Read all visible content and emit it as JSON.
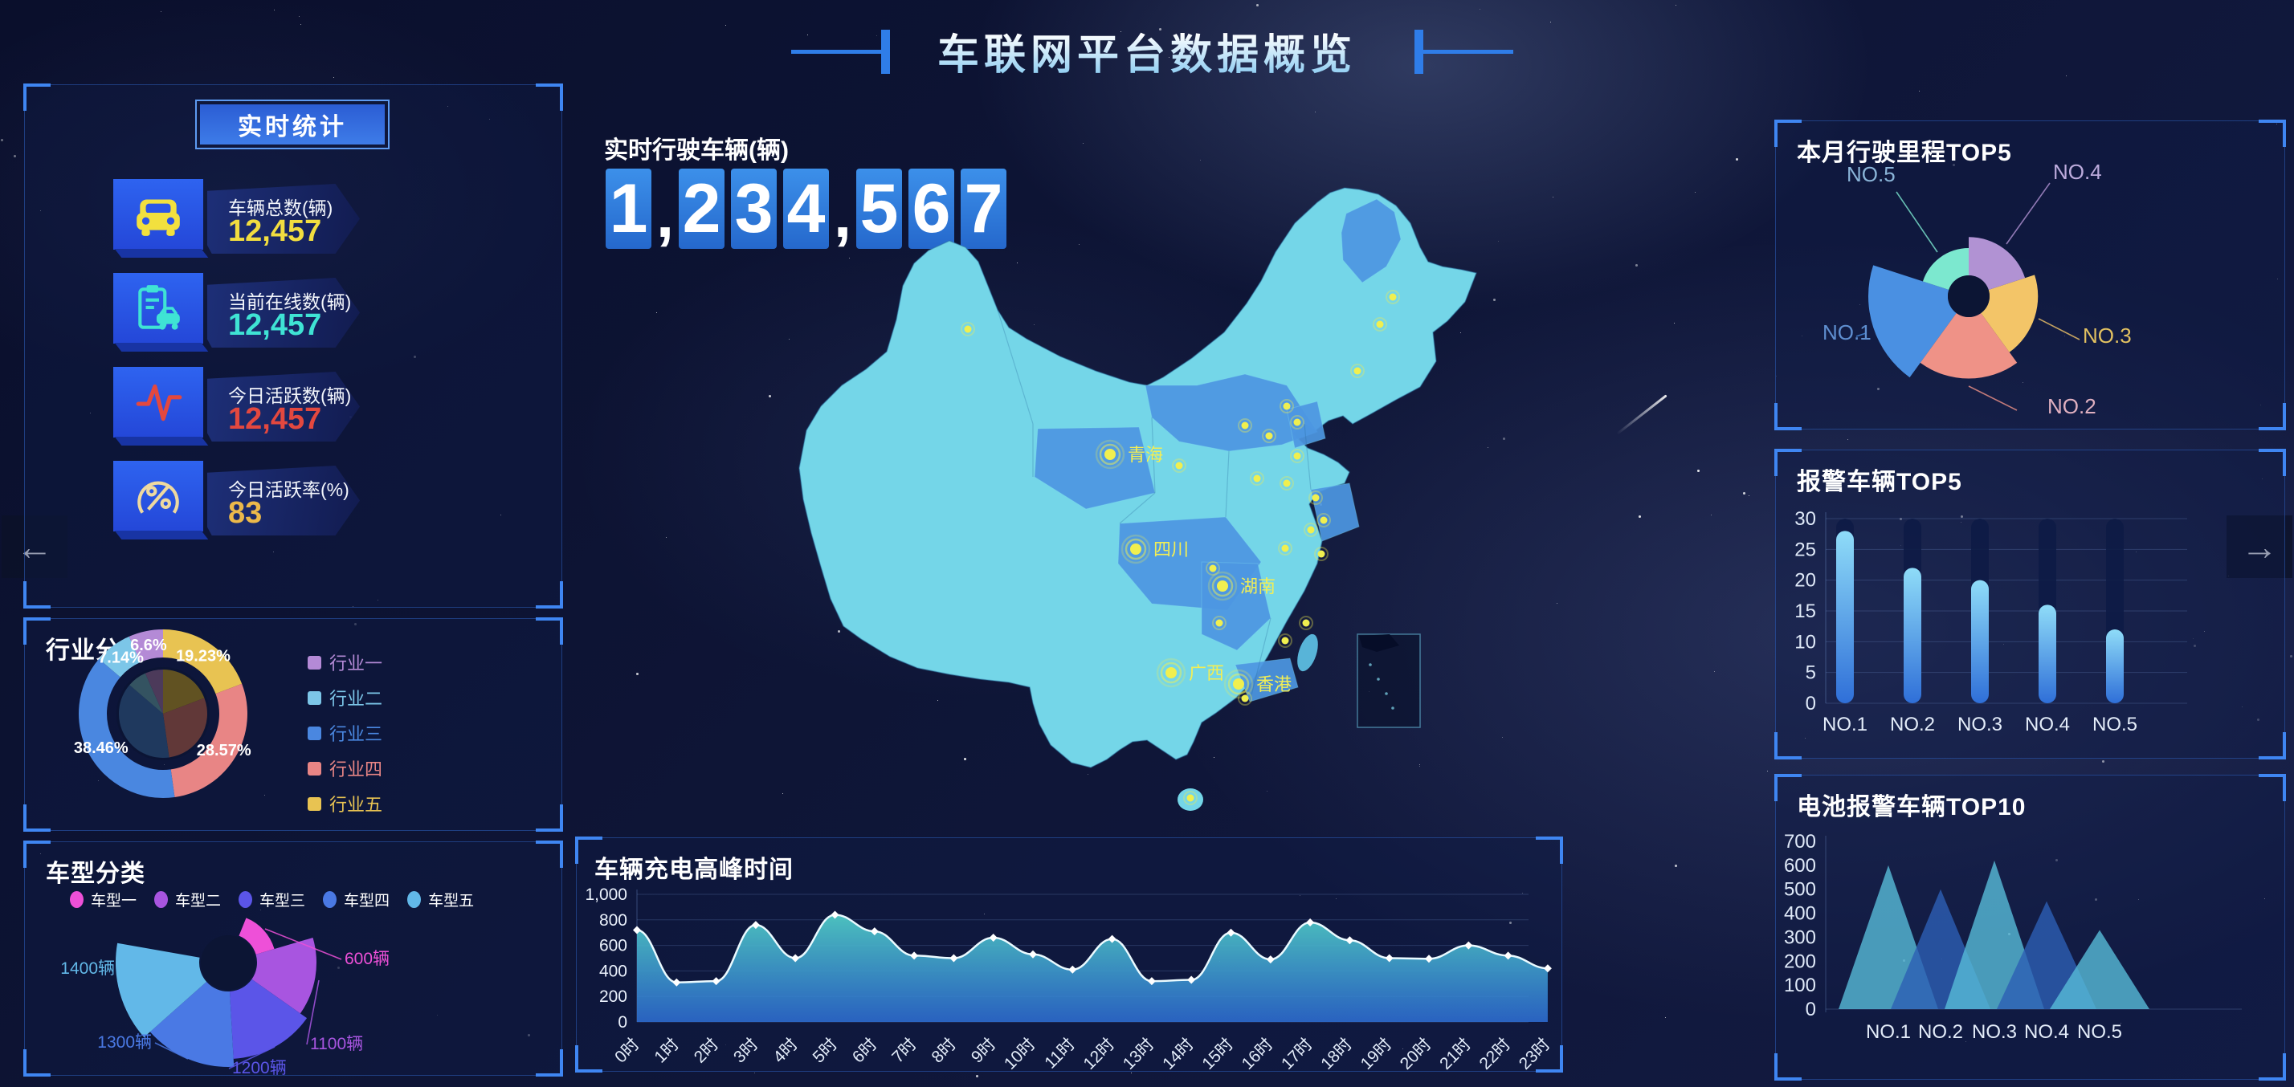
{
  "page": {
    "title": "车联网平台数据概览",
    "nav_prev": "←",
    "nav_next": "→"
  },
  "realtime": {
    "header": "实时统计",
    "items": [
      {
        "icon": "car-icon",
        "label": "车辆总数(辆)",
        "value": "12,457",
        "color": "#f2dd3f"
      },
      {
        "icon": "online-car-icon",
        "label": "当前在线数(辆)",
        "value": "12,457",
        "color": "#3fe3d4"
      },
      {
        "icon": "pulse-icon",
        "label": "今日活跃数(辆)",
        "value": "12,457",
        "color": "#e3483f"
      },
      {
        "icon": "percent-icon",
        "label": "今日活跃率(%)",
        "value": "83",
        "color": "#ecb94a"
      }
    ]
  },
  "industry": {
    "title": "行业分类",
    "chart_data": {
      "type": "pie",
      "donut": true,
      "legend_position": "right",
      "series": [
        {
          "name": "行业一",
          "value": 6.6,
          "pct_label": "6.6%",
          "color": "#b48ad6"
        },
        {
          "name": "行业二",
          "value": 7.14,
          "pct_label": "7.14%",
          "color": "#7cc6e8"
        },
        {
          "name": "行业三",
          "value": 38.46,
          "pct_label": "38.46%",
          "color": "#4a87e0"
        },
        {
          "name": "行业四",
          "value": 28.57,
          "pct_label": "28.57%",
          "color": "#e88585"
        },
        {
          "name": "行业五",
          "value": 19.23,
          "pct_label": "19.23%",
          "color": "#e8c352"
        }
      ]
    }
  },
  "vehicle": {
    "title": "车型分类",
    "chart_data": {
      "type": "rose-pie",
      "unit": "辆",
      "series": [
        {
          "name": "车型一",
          "value": 600,
          "label": "600辆",
          "color": "#ee50d8"
        },
        {
          "name": "车型二",
          "value": 1100,
          "label": "1100辆",
          "color": "#a855e0"
        },
        {
          "name": "车型三",
          "value": 1200,
          "label": "1200辆",
          "color": "#5b55e8"
        },
        {
          "name": "车型四",
          "value": 1300,
          "label": "1300辆",
          "color": "#4a79e4"
        },
        {
          "name": "车型五",
          "value": 1400,
          "label": "1400辆",
          "color": "#62b8e8"
        }
      ]
    }
  },
  "center": {
    "label": "实时行驶车辆(辆)",
    "value": "1,234,567"
  },
  "map": {
    "markers": [
      {
        "name": "青海",
        "x": 392,
        "y": 338
      },
      {
        "name": "四川",
        "x": 424,
        "y": 456
      },
      {
        "name": "湖南",
        "x": 532,
        "y": 502
      },
      {
        "name": "广西",
        "x": 468,
        "y": 610
      },
      {
        "name": "香港",
        "x": 552,
        "y": 624
      }
    ]
  },
  "mileage": {
    "title": "本月行驶里程TOP5",
    "chart_data": {
      "type": "rose-pie",
      "note": "no numeric labels shown; radii are relative ranks",
      "series": [
        {
          "name": "NO.1",
          "radius_rel": 1.0,
          "color": "#4a90e2",
          "text_color": "#5f8fd0"
        },
        {
          "name": "NO.2",
          "radius_rel": 0.82,
          "color": "#ef9287",
          "text_color": "#e0b0c0"
        },
        {
          "name": "NO.3",
          "radius_rel": 0.69,
          "color": "#f3c568",
          "text_color": "#e2c161"
        },
        {
          "name": "NO.4",
          "radius_rel": 0.59,
          "color": "#b192d3",
          "text_color": "#bcabdc"
        },
        {
          "name": "NO.5",
          "radius_rel": 0.48,
          "color": "#7ce8cf",
          "text_color": "#8ab4d8"
        }
      ]
    }
  },
  "alarm": {
    "title": "报警车辆TOP5",
    "chart_data": {
      "type": "bar",
      "categories": [
        "NO.1",
        "NO.2",
        "NO.3",
        "NO.4",
        "NO.5"
      ],
      "values": [
        28,
        22,
        20,
        16,
        12
      ],
      "ylim": [
        0,
        30
      ],
      "yticks": [
        0,
        5,
        10,
        15,
        20,
        25,
        30
      ],
      "bar_gradient": [
        "#8fdcf8",
        "#2f6fd8"
      ]
    }
  },
  "battery": {
    "title": "电池报警车辆TOP10",
    "chart_data": {
      "type": "triangle-area",
      "categories": [
        "NO.1",
        "NO.2",
        "NO.3",
        "NO.4",
        "NO.5"
      ],
      "values": [
        600,
        500,
        620,
        450,
        330
      ],
      "ylim": [
        0,
        700
      ],
      "yticks": [
        0,
        100,
        200,
        300,
        400,
        500,
        600,
        700
      ],
      "colors": [
        "#58bcd8",
        "#2d5fb4"
      ]
    }
  },
  "charging": {
    "title": "车辆充电高峰时间",
    "chart_data": {
      "type": "area",
      "x": [
        "0时",
        "1时",
        "2时",
        "3时",
        "4时",
        "5时",
        "6时",
        "7时",
        "8时",
        "9时",
        "10时",
        "11时",
        "12时",
        "13时",
        "14时",
        "15时",
        "16时",
        "17时",
        "18时",
        "19时",
        "20时",
        "21时",
        "22时",
        "23时"
      ],
      "values": [
        720,
        310,
        320,
        760,
        500,
        840,
        710,
        520,
        500,
        660,
        530,
        410,
        650,
        320,
        330,
        700,
        490,
        780,
        640,
        500,
        495,
        600,
        520,
        420
      ],
      "ylim": [
        0,
        1000
      ],
      "yticks": [
        "0",
        "200",
        "400",
        "600",
        "800",
        "1,000"
      ],
      "area_gradient": [
        "#4fc9c4",
        "#2e6fd6"
      ]
    }
  }
}
